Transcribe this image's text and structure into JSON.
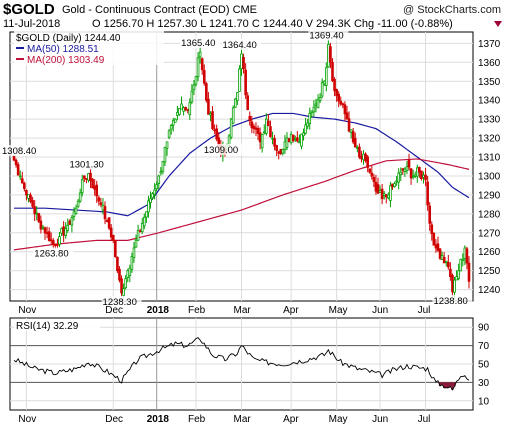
{
  "header": {
    "symbol": "$GOLD",
    "description": "Gold - Continuous Contract (EOD) CME",
    "credit": "@ StockCharts.com",
    "date": "11-Jul-2018",
    "ohlc_text": "O 1256.70  H 1257.30  L 1241.70  C 1244.40  V 294.3K  Chg -11.00 (-0.88%)"
  },
  "colors": {
    "up_candle": "#00a000",
    "down_candle": "#d00000",
    "ma50": "#1a1aa0",
    "ma200": "#c0103a",
    "grid": "#dcdcdc",
    "rsi_line": "#000000",
    "rsi_fill": "#8b1a3a"
  },
  "legend": {
    "price": "$GOLD (Daily) 1244.40",
    "ma50": "MA(50) 1288.51",
    "ma200": "MA(200) 1303.49"
  },
  "rsi_legend": "RSI(14) 32.29",
  "chart_data": [
    {
      "type": "candlestick",
      "title": "$GOLD (Daily) 1244.40",
      "ylim": [
        1234,
        1376
      ],
      "y_ticks": [
        1240,
        1250,
        1260,
        1270,
        1280,
        1290,
        1300,
        1310,
        1320,
        1330,
        1340,
        1350,
        1360,
        1370
      ],
      "x_month_labels": [
        "Nov",
        "Dec",
        "2018",
        "Feb",
        "Mar",
        "Apr",
        "May",
        "Jun",
        "Jul"
      ],
      "grid": true,
      "price_anchors": [
        [
          0,
          1308.4
        ],
        [
          3,
          1300
        ],
        [
          6,
          1290
        ],
        [
          9,
          1284
        ],
        [
          12,
          1276
        ],
        [
          16,
          1270
        ],
        [
          19,
          1263.8
        ],
        [
          22,
          1268
        ],
        [
          26,
          1274
        ],
        [
          30,
          1283
        ],
        [
          33,
          1298
        ],
        [
          36,
          1301.3
        ],
        [
          39,
          1293
        ],
        [
          42,
          1285
        ],
        [
          45,
          1276
        ],
        [
          48,
          1266
        ],
        [
          50,
          1250
        ],
        [
          52,
          1238.3
        ],
        [
          55,
          1250
        ],
        [
          58,
          1262
        ],
        [
          62,
          1275
        ],
        [
          66,
          1288
        ],
        [
          70,
          1300
        ],
        [
          74,
          1318
        ],
        [
          78,
          1330
        ],
        [
          81,
          1338
        ],
        [
          84,
          1335
        ],
        [
          87,
          1348
        ],
        [
          90,
          1365.4
        ],
        [
          93,
          1340
        ],
        [
          96,
          1325
        ],
        [
          99,
          1316
        ],
        [
          102,
          1312
        ],
        [
          105,
          1330
        ],
        [
          108,
          1344
        ],
        [
          110,
          1364.4
        ],
        [
          113,
          1335
        ],
        [
          116,
          1325
        ],
        [
          119,
          1318
        ],
        [
          122,
          1330
        ],
        [
          125,
          1320
        ],
        [
          128,
          1312
        ],
        [
          131,
          1318
        ],
        [
          134,
          1322
        ],
        [
          138,
          1318
        ],
        [
          142,
          1328
        ],
        [
          146,
          1338
        ],
        [
          150,
          1350
        ],
        [
          152,
          1369.4
        ],
        [
          155,
          1345
        ],
        [
          158,
          1338
        ],
        [
          161,
          1330
        ],
        [
          164,
          1318
        ],
        [
          167,
          1310
        ],
        [
          170,
          1308
        ],
        [
          172,
          1302
        ],
        [
          175,
          1292
        ],
        [
          178,
          1288
        ],
        [
          181,
          1290
        ],
        [
          184,
          1296
        ],
        [
          187,
          1302
        ],
        [
          190,
          1305
        ],
        [
          193,
          1300
        ],
        [
          196,
          1302
        ],
        [
          199,
          1298
        ],
        [
          201,
          1275
        ],
        [
          204,
          1262
        ],
        [
          207,
          1258
        ],
        [
          210,
          1252
        ],
        [
          212,
          1238.8
        ],
        [
          215,
          1250
        ],
        [
          218,
          1262
        ],
        [
          219,
          1254
        ],
        [
          220,
          1244.4
        ]
      ],
      "annotations": [
        {
          "text": "1308.40",
          "x": 0,
          "y": 1308.4
        },
        {
          "text": "1263.80",
          "x": 19,
          "y": 1263.8
        },
        {
          "text": "1301.30",
          "x": 36,
          "y": 1301.3
        },
        {
          "text": "1238.30",
          "x": 52,
          "y": 1238.3
        },
        {
          "text": "1365.40",
          "x": 90,
          "y": 1365.4
        },
        {
          "text": "1309.00",
          "x": 101,
          "y": 1309.0
        },
        {
          "text": "1364.40",
          "x": 110,
          "y": 1364.4
        },
        {
          "text": "1369.40",
          "x": 152,
          "y": 1369.4
        },
        {
          "text": "1238.80",
          "x": 212,
          "y": 1238.8
        }
      ],
      "series": [
        {
          "name": "MA(50) 1288.51",
          "points": [
            [
              0,
              1283
            ],
            [
              15,
              1283
            ],
            [
              30,
              1282
            ],
            [
              45,
              1281
            ],
            [
              55,
              1279
            ],
            [
              65,
              1285
            ],
            [
              75,
              1300
            ],
            [
              85,
              1312
            ],
            [
              95,
              1320
            ],
            [
              105,
              1326
            ],
            [
              115,
              1330
            ],
            [
              125,
              1333
            ],
            [
              135,
              1333
            ],
            [
              145,
              1331
            ],
            [
              155,
              1330
            ],
            [
              165,
              1328
            ],
            [
              175,
              1325
            ],
            [
              185,
              1318
            ],
            [
              195,
              1310
            ],
            [
              205,
              1302
            ],
            [
              212,
              1294
            ],
            [
              220,
              1288.51
            ]
          ]
        },
        {
          "name": "MA(200) 1303.49",
          "points": [
            [
              0,
              1261
            ],
            [
              20,
              1264
            ],
            [
              40,
              1266
            ],
            [
              55,
              1266
            ],
            [
              70,
              1270
            ],
            [
              90,
              1276
            ],
            [
              110,
              1282
            ],
            [
              130,
              1290
            ],
            [
              150,
              1297
            ],
            [
              165,
              1303
            ],
            [
              180,
              1308
            ],
            [
              195,
              1309
            ],
            [
              210,
              1306
            ],
            [
              220,
              1303.49
            ]
          ]
        }
      ]
    },
    {
      "type": "line",
      "title": "RSI(14) 32.29",
      "ylim": [
        0,
        100
      ],
      "y_ticks": [
        10,
        30,
        50,
        70,
        90
      ],
      "reference_lines": [
        30,
        70
      ],
      "x_month_labels": [
        "Nov",
        "Dec",
        "2018",
        "Feb",
        "Mar",
        "Apr",
        "May",
        "Jun",
        "Jul"
      ],
      "series": [
        {
          "name": "RSI(14) 32.29",
          "points": [
            [
              0,
              55
            ],
            [
              10,
              45
            ],
            [
              20,
              40
            ],
            [
              30,
              45
            ],
            [
              36,
              52
            ],
            [
              45,
              42
            ],
            [
              52,
              32
            ],
            [
              60,
              55
            ],
            [
              70,
              65
            ],
            [
              78,
              72
            ],
            [
              84,
              70
            ],
            [
              90,
              78
            ],
            [
              96,
              60
            ],
            [
              102,
              55
            ],
            [
              108,
              62
            ],
            [
              110,
              70
            ],
            [
              116,
              55
            ],
            [
              122,
              52
            ],
            [
              130,
              50
            ],
            [
              140,
              54
            ],
            [
              150,
              60
            ],
            [
              152,
              65
            ],
            [
              158,
              52
            ],
            [
              166,
              45
            ],
            [
              172,
              42
            ],
            [
              178,
              38
            ],
            [
              184,
              44
            ],
            [
              190,
              48
            ],
            [
              196,
              46
            ],
            [
              200,
              45
            ],
            [
              204,
              30
            ],
            [
              210,
              25
            ],
            [
              212,
              22
            ],
            [
              216,
              38
            ],
            [
              218,
              40
            ],
            [
              220,
              32.29
            ]
          ]
        }
      ]
    }
  ]
}
